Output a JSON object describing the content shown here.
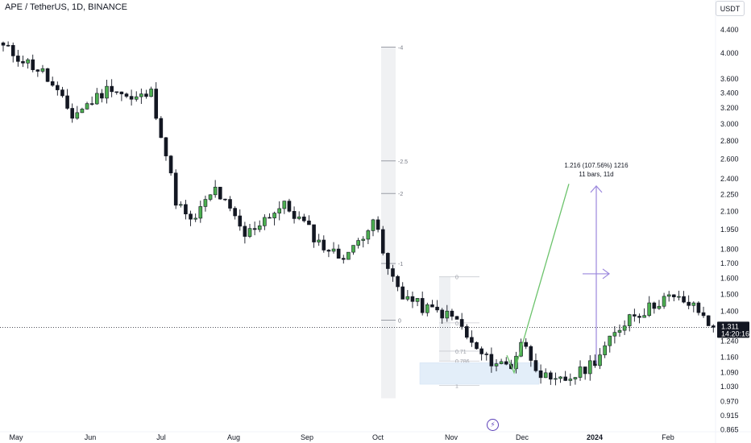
{
  "header": {
    "title": "APE / TetherUS, 1D, BINANCE",
    "unit": "USDT"
  },
  "chart_data": {
    "type": "candlestick",
    "scale": "log",
    "y_ticks": [
      4.4,
      4.0,
      3.6,
      3.4,
      3.2,
      3.0,
      2.8,
      2.6,
      2.4,
      2.25,
      2.1,
      1.95,
      1.8,
      1.7,
      1.6,
      1.5,
      1.4,
      1.24,
      1.16,
      1.09,
      1.03,
      0.97,
      0.915,
      0.865
    ],
    "y_tick_labels": [
      "4.400",
      "4.000",
      "3.600",
      "3.400",
      "3.200",
      "3.000",
      "2.800",
      "2.600",
      "2.400",
      "2.250",
      "2.100",
      "1.950",
      "1.800",
      "1.700",
      "1.600",
      "1.500",
      "1.400",
      "1.240",
      "1.160",
      "1.090",
      "1.030",
      "0.970",
      "0.915",
      "0.865"
    ],
    "x_labels": [
      "May",
      "Jun",
      "Jul",
      "Aug",
      "Sep",
      "Oct",
      "Nov",
      "Dec",
      "2024",
      "Feb"
    ],
    "x_label_emphasis": "2024",
    "last_price": {
      "value": 1.311,
      "label": "1.311",
      "countdown": "14:20:16"
    },
    "colors": {
      "up": "#4caf50",
      "down": "#131722",
      "fib": "#787b86",
      "projection_up": "#6cc36c",
      "measure": "#9b87dd"
    },
    "close_path": [
      [
        0,
        4.1
      ],
      [
        8,
        3.7
      ],
      [
        14,
        3.1
      ],
      [
        22,
        3.5
      ],
      [
        26,
        3.3
      ],
      [
        30,
        3.4
      ],
      [
        32,
        2.9
      ],
      [
        35,
        2.2
      ],
      [
        38,
        2.0
      ],
      [
        43,
        2.3
      ],
      [
        46,
        2.1
      ],
      [
        49,
        1.9
      ],
      [
        53,
        2.05
      ],
      [
        57,
        2.15
      ],
      [
        61,
        2.0
      ],
      [
        64,
        1.85
      ],
      [
        68,
        1.75
      ],
      [
        71,
        1.8
      ],
      [
        75,
        2.05
      ],
      [
        78,
        1.65
      ],
      [
        81,
        1.5
      ],
      [
        85,
        1.42
      ],
      [
        89,
        1.39
      ],
      [
        92,
        1.35
      ],
      [
        95,
        1.22
      ],
      [
        98,
        1.15
      ],
      [
        103,
        1.12
      ],
      [
        105,
        1.24
      ],
      [
        107,
        1.16
      ],
      [
        109,
        1.09
      ],
      [
        111,
        1.04
      ],
      [
        114,
        1.06
      ],
      [
        117,
        1.09
      ],
      [
        120,
        1.15
      ],
      [
        124,
        1.27
      ],
      [
        127,
        1.38
      ],
      [
        130,
        1.4
      ],
      [
        134,
        1.48
      ],
      [
        138,
        1.46
      ],
      [
        141,
        1.4
      ],
      [
        143,
        1.33
      ],
      [
        144,
        1.311
      ]
    ],
    "fib_extension": {
      "levels": [
        "-4",
        "-2.5",
        "-2",
        "-1",
        "0"
      ],
      "prices": [
        4.1,
        2.58,
        2.26,
        1.7,
        1.35
      ]
    },
    "fib_retracement": {
      "levels": [
        "0",
        "0.5",
        "0.71",
        "0.786",
        "1"
      ],
      "prices": [
        1.61,
        1.335,
        1.19,
        1.143,
        1.035
      ]
    },
    "demand_zone": {
      "low": 1.04,
      "high": 1.135
    },
    "projection": {
      "dip_low": 1.09,
      "target": 2.35
    },
    "measure": {
      "label_line1": "1.216 (107.56%) 1216",
      "label_line2": "11 bars, 11d"
    }
  }
}
